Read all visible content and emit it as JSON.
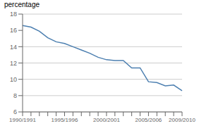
{
  "chart_data": {
    "type": "line",
    "ylabel": "percentage",
    "categories": [
      "1990/1991",
      null,
      null,
      null,
      null,
      "1995/1996",
      null,
      null,
      null,
      null,
      "2000/2001",
      null,
      null,
      null,
      null,
      "2005/2006",
      null,
      null,
      null,
      "2009/2010"
    ],
    "values": [
      16.6,
      16.4,
      15.9,
      15.1,
      14.6,
      14.4,
      14.0,
      13.6,
      13.2,
      12.7,
      12.4,
      12.3,
      12.3,
      11.4,
      11.4,
      9.7,
      9.6,
      9.2,
      9.3,
      8.6
    ],
    "color": "#4c7fb0",
    "ylim": [
      6,
      18
    ],
    "yticks": [
      6,
      8,
      10,
      12,
      14,
      16,
      18
    ],
    "grid": true
  }
}
